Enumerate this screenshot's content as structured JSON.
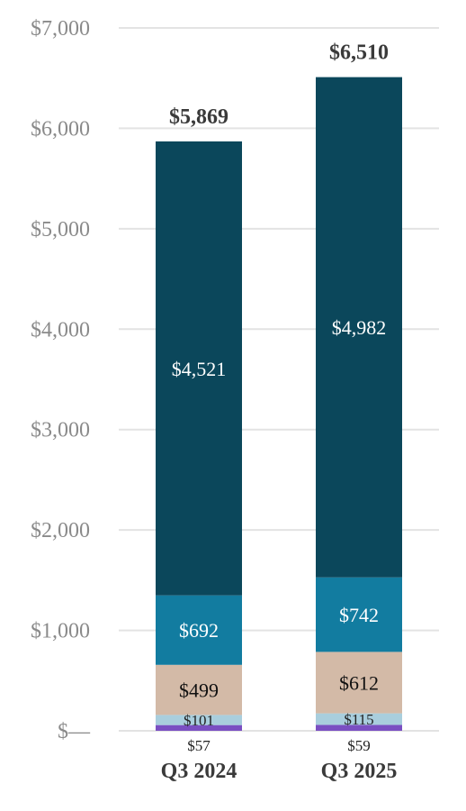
{
  "chart_data": {
    "type": "bar",
    "stacked": true,
    "categories": [
      "Q3 2024",
      "Q3 2025"
    ],
    "series": [
      {
        "values": [
          57,
          59
        ],
        "color": "#7a4fc2",
        "label_color": "#222222",
        "label_position": "below"
      },
      {
        "values": [
          101,
          115
        ],
        "color": "#a9cedd",
        "label_color": "#222222",
        "label_position": "inside"
      },
      {
        "values": [
          499,
          612
        ],
        "color": "#d3baa7",
        "label_color": "#111111",
        "label_position": "inside"
      },
      {
        "values": [
          692,
          742
        ],
        "color": "#127ca0",
        "label_color": "#ffffff",
        "label_position": "inside"
      },
      {
        "values": [
          4521,
          4982
        ],
        "color": "#0b475b",
        "label_color": "#ffffff",
        "label_position": "inside"
      }
    ],
    "segment_labels": [
      [
        "$57",
        "$101",
        "$499",
        "$692",
        "$4,521"
      ],
      [
        "$59",
        "$115",
        "$612",
        "$742",
        "$4,982"
      ]
    ],
    "totals": [
      5869,
      6510
    ],
    "total_labels": [
      "$5,869",
      "$6,510"
    ],
    "ylim": [
      0,
      7000
    ],
    "yticks": [
      0,
      1000,
      2000,
      3000,
      4000,
      5000,
      6000,
      7000
    ],
    "ytick_labels": [
      "$—",
      "$1,000",
      "$2,000",
      "$3,000",
      "$4,000",
      "$5,000",
      "$6,000",
      "$7,000"
    ],
    "grid": true,
    "title": "",
    "xlabel": "",
    "ylabel": ""
  }
}
